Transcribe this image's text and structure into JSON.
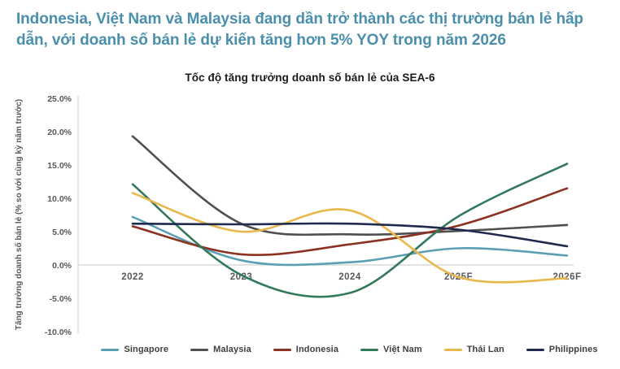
{
  "headline": {
    "text": "Indonesia, Việt Nam và Malaysia đang dần trở thành các thị trường bán lẻ hấp dẫn, với doanh số bán lẻ dự kiến tăng hơn 5% YOY trong năm 2026"
  },
  "colors": {
    "headline_accent": "#4a8fab",
    "axis_text": "#595959",
    "gridline": "#d9d9d9",
    "title_text": "#1a1a1a"
  },
  "chart_data": {
    "type": "line",
    "title": "Tốc độ tăng trưởng doanh số bán lẻ của SEA-6",
    "ylabel": "Tăng trưởng doanh số bán lẻ (% so với cùng kỳ năm trước)",
    "xlabel": "",
    "categories": [
      "2022",
      "2023",
      "2024",
      "2025F",
      "2026F"
    ],
    "ylim": [
      -10,
      25
    ],
    "grid": "zero-line-only",
    "legend_position": "bottom",
    "y_ticks": [
      {
        "label": "25.0%",
        "value": 25
      },
      {
        "label": "20.0%",
        "value": 20
      },
      {
        "label": "15.0%",
        "value": 15
      },
      {
        "label": "10.0%",
        "value": 10
      },
      {
        "label": "5.0%",
        "value": 5
      },
      {
        "label": "0.0%",
        "value": 0
      },
      {
        "label": "-5.0%",
        "value": -5
      },
      {
        "label": "-10.0%",
        "value": -10
      }
    ],
    "series": [
      {
        "name": "Singapore",
        "color": "#5B9FB5",
        "values": [
          7.2,
          0.7,
          0.4,
          2.5,
          1.4
        ]
      },
      {
        "name": "Malaysia",
        "color": "#4F4F4F",
        "values": [
          19.3,
          6.2,
          4.6,
          5.1,
          6.0
        ]
      },
      {
        "name": "Indonesia",
        "color": "#8B3222",
        "values": [
          5.8,
          1.6,
          3.1,
          5.9,
          11.5
        ]
      },
      {
        "name": "Việt Nam",
        "color": "#35795B",
        "values": [
          12.1,
          -1.5,
          -4.2,
          7.3,
          15.2
        ]
      },
      {
        "name": "Thái Lan",
        "color": "#E9B84D",
        "values": [
          10.8,
          5.0,
          8.2,
          -1.8,
          -2.0
        ]
      },
      {
        "name": "Philippines",
        "color": "#1F2A4E",
        "values": [
          6.2,
          6.1,
          6.2,
          5.3,
          2.8
        ]
      }
    ]
  }
}
